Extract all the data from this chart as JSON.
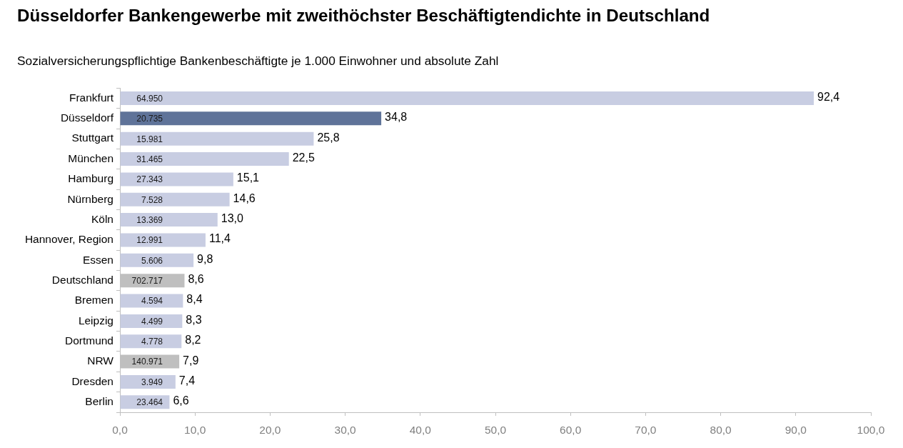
{
  "chart_data": {
    "type": "bar",
    "orientation": "horizontal",
    "title": "Düsseldorfer Bankengewerbe mit zweithöchster Beschäftigtendichte in Deutschland",
    "subtitle": "Sozialversicherungspflichtige Bankenbeschäftigte je 1.000 Einwohner und absolute Zahl",
    "categories": [
      "Frankfurt",
      "Düsseldorf",
      "Stuttgart",
      "München",
      "Hamburg",
      "Nürnberg",
      "Köln",
      "Hannover, Region",
      "Essen",
      "Deutschland",
      "Bremen",
      "Leipzig",
      "Dortmund",
      "NRW",
      "Dresden",
      "Berlin"
    ],
    "values": [
      92.4,
      34.8,
      25.8,
      22.5,
      15.1,
      14.6,
      13.0,
      11.4,
      9.8,
      8.6,
      8.4,
      8.3,
      8.2,
      7.9,
      7.4,
      6.6
    ],
    "colors": [
      "#c8cde2",
      "#5f7399",
      "#c8cde2",
      "#c8cde2",
      "#c8cde2",
      "#c8cde2",
      "#c8cde2",
      "#c8cde2",
      "#c8cde2",
      "#bfbfbf",
      "#c8cde2",
      "#c8cde2",
      "#c8cde2",
      "#bfbfbf",
      "#c8cde2",
      "#c8cde2"
    ],
    "value_labels": [
      "92,4",
      "34,8",
      "25,8",
      "22,5",
      "15,1",
      "14,6",
      "13,0",
      "11,4",
      "9,8",
      "8,6",
      "8,4",
      "8,3",
      "8,2",
      "7,9",
      "7,4",
      "6,6"
    ],
    "xlim": [
      0,
      100
    ],
    "xticks": [
      {
        "value": 0,
        "label": "0,0"
      },
      {
        "value": 10,
        "label": "10,0"
      },
      {
        "value": 20,
        "label": "20,0"
      },
      {
        "value": 30,
        "label": "30,0"
      },
      {
        "value": 40,
        "label": "40,0"
      },
      {
        "value": 50,
        "label": "50,0"
      },
      {
        "value": 60,
        "label": "60,0"
      },
      {
        "value": 70,
        "label": "70,0"
      },
      {
        "value": 80,
        "label": "80,0"
      },
      {
        "value": 90,
        "label": "90,0"
      },
      {
        "value": 100,
        "label": "100,0"
      }
    ],
    "annotations": [
      {
        "text": "64.950",
        "y": "Frankfurt"
      },
      {
        "text": "20.735",
        "y": "Düsseldorf"
      },
      {
        "text": "15.981",
        "y": "Stuttgart"
      },
      {
        "text": "31.465",
        "y": "München"
      },
      {
        "text": "27.343",
        "y": "Hamburg"
      },
      {
        "text": "7.528",
        "y": "Nürnberg"
      },
      {
        "text": "13.369",
        "y": "Köln"
      },
      {
        "text": "12.991",
        "y": "Hannover, Region"
      },
      {
        "text": "5.606",
        "y": "Essen"
      },
      {
        "text": "702.717",
        "y": "Deutschland"
      },
      {
        "text": "4.594",
        "y": "Bremen"
      },
      {
        "text": "4.499",
        "y": "Leipzig"
      },
      {
        "text": "4.778",
        "y": "Dortmund"
      },
      {
        "text": "140.971",
        "y": "NRW"
      },
      {
        "text": "3.949",
        "y": "Dresden"
      },
      {
        "text": "23.464",
        "y": "Berlin"
      }
    ]
  }
}
